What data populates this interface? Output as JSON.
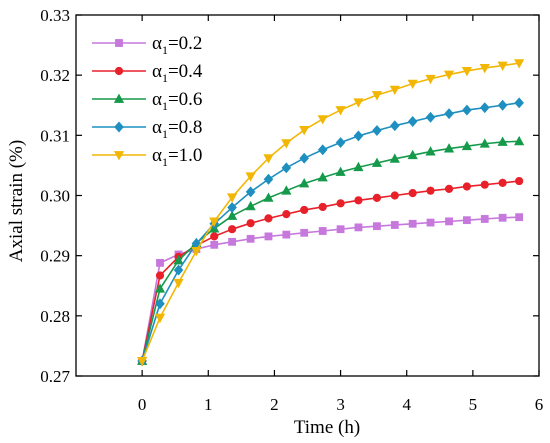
{
  "chart_data": {
    "type": "line",
    "xlabel": "Time (h)",
    "ylabel": "Axial strain (%)",
    "xlim": [
      -1,
      6
    ],
    "ylim": [
      0.27,
      0.33
    ],
    "xticks": [
      0,
      1,
      2,
      3,
      4,
      5,
      6
    ],
    "yticks": [
      0.27,
      0.28,
      0.29,
      0.3,
      0.31,
      0.32,
      0.33
    ],
    "xtick_labels": [
      "0",
      "1",
      "2",
      "3",
      "4",
      "5",
      "6"
    ],
    "ytick_labels": [
      "0.27",
      "0.28",
      "0.29",
      "0.30",
      "0.31",
      "0.32",
      "0.33"
    ],
    "grid": false,
    "legend_position": "top-left",
    "series": [
      {
        "name": "α1=0.2",
        "label_main": "α",
        "label_sub": "1",
        "label_value": "=0.2",
        "color": "#C678DD",
        "marker": "square",
        "x": [
          0,
          0.27,
          0.55,
          0.82,
          1.09,
          1.36,
          1.64,
          1.91,
          2.18,
          2.45,
          2.73,
          3.0,
          3.27,
          3.55,
          3.82,
          4.09,
          4.36,
          4.64,
          4.91,
          5.18,
          5.45,
          5.7
        ],
        "y": [
          0.2725,
          0.2888,
          0.2902,
          0.2911,
          0.2918,
          0.2923,
          0.2928,
          0.2932,
          0.2935,
          0.2938,
          0.2941,
          0.2944,
          0.2947,
          0.2949,
          0.2951,
          0.2953,
          0.2955,
          0.2957,
          0.2959,
          0.2961,
          0.2963,
          0.2964
        ]
      },
      {
        "name": "α1=0.4",
        "label_main": "α",
        "label_sub": "1",
        "label_value": "=0.4",
        "color": "#E8202A",
        "marker": "circle",
        "x": [
          0,
          0.27,
          0.55,
          0.82,
          1.09,
          1.36,
          1.64,
          1.91,
          2.18,
          2.45,
          2.73,
          3.0,
          3.27,
          3.55,
          3.82,
          4.09,
          4.36,
          4.64,
          4.91,
          5.18,
          5.45,
          5.7
        ],
        "y": [
          0.2725,
          0.2867,
          0.2898,
          0.2917,
          0.2932,
          0.2944,
          0.2954,
          0.2962,
          0.2969,
          0.2976,
          0.2981,
          0.2987,
          0.2992,
          0.2996,
          0.3,
          0.3004,
          0.3008,
          0.3011,
          0.3015,
          0.3018,
          0.3021,
          0.3024
        ]
      },
      {
        "name": "α1=0.6",
        "label_main": "α",
        "label_sub": "1",
        "label_value": "=0.6",
        "color": "#159A4B",
        "marker": "triangle-up",
        "x": [
          0,
          0.27,
          0.55,
          0.82,
          1.09,
          1.36,
          1.64,
          1.91,
          2.18,
          2.45,
          2.73,
          3.0,
          3.27,
          3.55,
          3.82,
          4.09,
          4.36,
          4.64,
          4.91,
          5.18,
          5.45,
          5.7
        ],
        "y": [
          0.2725,
          0.2845,
          0.2892,
          0.2921,
          0.2945,
          0.2966,
          0.2982,
          0.2996,
          0.3008,
          0.302,
          0.303,
          0.3039,
          0.3047,
          0.3054,
          0.3061,
          0.3067,
          0.3073,
          0.3078,
          0.3082,
          0.3086,
          0.3089,
          0.309
        ]
      },
      {
        "name": "α1=0.8",
        "label_main": "α",
        "label_sub": "1",
        "label_value": "=0.8",
        "color": "#1F8FC0",
        "marker": "diamond",
        "x": [
          0,
          0.27,
          0.55,
          0.82,
          1.09,
          1.36,
          1.64,
          1.91,
          2.18,
          2.45,
          2.73,
          3.0,
          3.27,
          3.55,
          3.82,
          4.09,
          4.36,
          4.64,
          4.91,
          5.18,
          5.45,
          5.7
        ],
        "y": [
          0.2725,
          0.282,
          0.2876,
          0.292,
          0.2953,
          0.298,
          0.3006,
          0.3027,
          0.3046,
          0.3062,
          0.3076,
          0.3088,
          0.3099,
          0.3108,
          0.3116,
          0.3123,
          0.313,
          0.3136,
          0.3142,
          0.3146,
          0.315,
          0.3154
        ]
      },
      {
        "name": "α1=1.0",
        "label_main": "α",
        "label_sub": "1",
        "label_value": "=1.0",
        "color": "#F2B705",
        "marker": "triangle-down",
        "x": [
          0,
          0.27,
          0.55,
          0.82,
          1.09,
          1.36,
          1.64,
          1.91,
          2.18,
          2.45,
          2.73,
          3.0,
          3.27,
          3.55,
          3.82,
          4.09,
          4.36,
          4.64,
          4.91,
          5.18,
          5.45,
          5.7
        ],
        "y": [
          0.2725,
          0.2797,
          0.2855,
          0.2908,
          0.2957,
          0.2997,
          0.3032,
          0.3062,
          0.3087,
          0.3109,
          0.3127,
          0.3142,
          0.3155,
          0.3167,
          0.3176,
          0.3186,
          0.3194,
          0.3201,
          0.3207,
          0.3212,
          0.3216,
          0.322
        ]
      }
    ]
  }
}
